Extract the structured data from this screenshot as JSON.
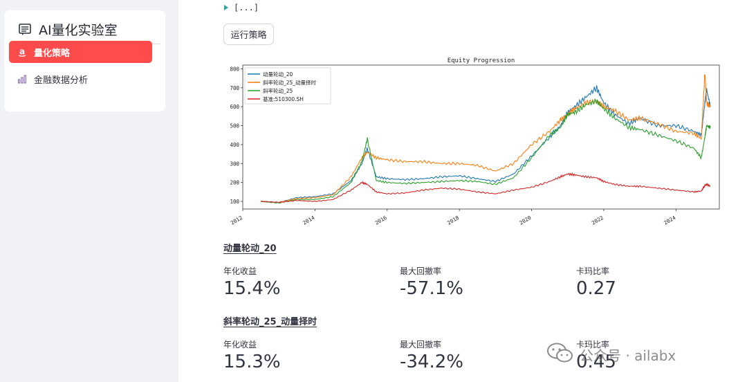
{
  "sidebar": {
    "app_title": "AI量化实验室",
    "items": [
      {
        "label": "量化策略",
        "icon": "a-logo-icon",
        "active": true
      },
      {
        "label": "金融数据分析",
        "icon": "bar-chart-icon",
        "active": false
      }
    ]
  },
  "main": {
    "expander_text": "[...]",
    "run_button": "运行策略",
    "strategies": [
      {
        "title": "动量轮动_20",
        "metrics": [
          {
            "label": "年化收益",
            "value": "15.4%"
          },
          {
            "label": "最大回撤率",
            "value": "-57.1%"
          },
          {
            "label": "卡玛比率",
            "value": "0.27"
          }
        ]
      },
      {
        "title": "斜率轮动_25_动量择时",
        "metrics": [
          {
            "label": "年化收益",
            "value": "15.3%"
          },
          {
            "label": "最大回撤率",
            "value": "-34.2%"
          },
          {
            "label": "卡玛比率",
            "value": "0.45"
          }
        ]
      }
    ]
  },
  "watermark": {
    "text": "公众号 · ailabx"
  },
  "colors": {
    "accent": "#ff4b4b",
    "sidebar_bg": "#f0f2f6"
  },
  "chart_data": {
    "type": "line",
    "title": "Equity Progression",
    "xlabel": "",
    "ylabel": "",
    "x_ticks": [
      "2012",
      "2014",
      "2016",
      "2018",
      "2020",
      "2022",
      "2024"
    ],
    "y_ticks": [
      "100",
      "200",
      "300",
      "400",
      "500",
      "600",
      "700",
      "800"
    ],
    "xlim": [
      2012.0,
      2025.2
    ],
    "ylim": [
      60,
      820
    ],
    "legend_position": "top-left",
    "grid": false,
    "x": [
      2012.5,
      2013.0,
      2013.5,
      2014.0,
      2014.5,
      2015.0,
      2015.3,
      2015.45,
      2015.7,
      2016.0,
      2016.5,
      2017.0,
      2017.5,
      2018.0,
      2018.5,
      2019.0,
      2019.5,
      2020.0,
      2020.5,
      2020.8,
      2021.0,
      2021.2,
      2021.5,
      2021.8,
      2022.0,
      2022.3,
      2022.7,
      2023.0,
      2023.5,
      2024.0,
      2024.5,
      2024.7,
      2024.8,
      2024.85,
      2024.95
    ],
    "series": [
      {
        "name": "动量轮动_20",
        "color": "#1f77b4",
        "values": [
          100,
          95,
          120,
          125,
          140,
          210,
          300,
          380,
          230,
          220,
          215,
          220,
          230,
          235,
          220,
          205,
          245,
          340,
          440,
          500,
          570,
          600,
          650,
          700,
          620,
          560,
          510,
          540,
          500,
          500,
          470,
          450,
          620,
          690,
          600
        ]
      },
      {
        "name": "斜率轮动_25_动量择时",
        "color": "#ff7f0e",
        "values": [
          100,
          95,
          115,
          120,
          135,
          230,
          330,
          360,
          330,
          320,
          310,
          310,
          300,
          300,
          290,
          260,
          300,
          400,
          470,
          530,
          560,
          590,
          620,
          630,
          600,
          580,
          530,
          540,
          510,
          470,
          460,
          430,
          780,
          620,
          600
        ]
      },
      {
        "name": "斜率轮动_25",
        "color": "#2ca02c",
        "values": [
          100,
          92,
          110,
          110,
          125,
          200,
          310,
          430,
          210,
          200,
          195,
          200,
          205,
          210,
          205,
          190,
          225,
          330,
          450,
          490,
          560,
          570,
          610,
          630,
          590,
          540,
          490,
          480,
          450,
          420,
          380,
          330,
          440,
          500,
          490
        ]
      },
      {
        "name": "基准:510300.SH",
        "color": "#d62728",
        "values": [
          100,
          95,
          105,
          100,
          110,
          160,
          200,
          190,
          150,
          140,
          145,
          160,
          170,
          165,
          150,
          140,
          160,
          175,
          205,
          230,
          245,
          240,
          230,
          225,
          205,
          190,
          180,
          180,
          170,
          160,
          150,
          155,
          185,
          190,
          180
        ]
      }
    ]
  }
}
